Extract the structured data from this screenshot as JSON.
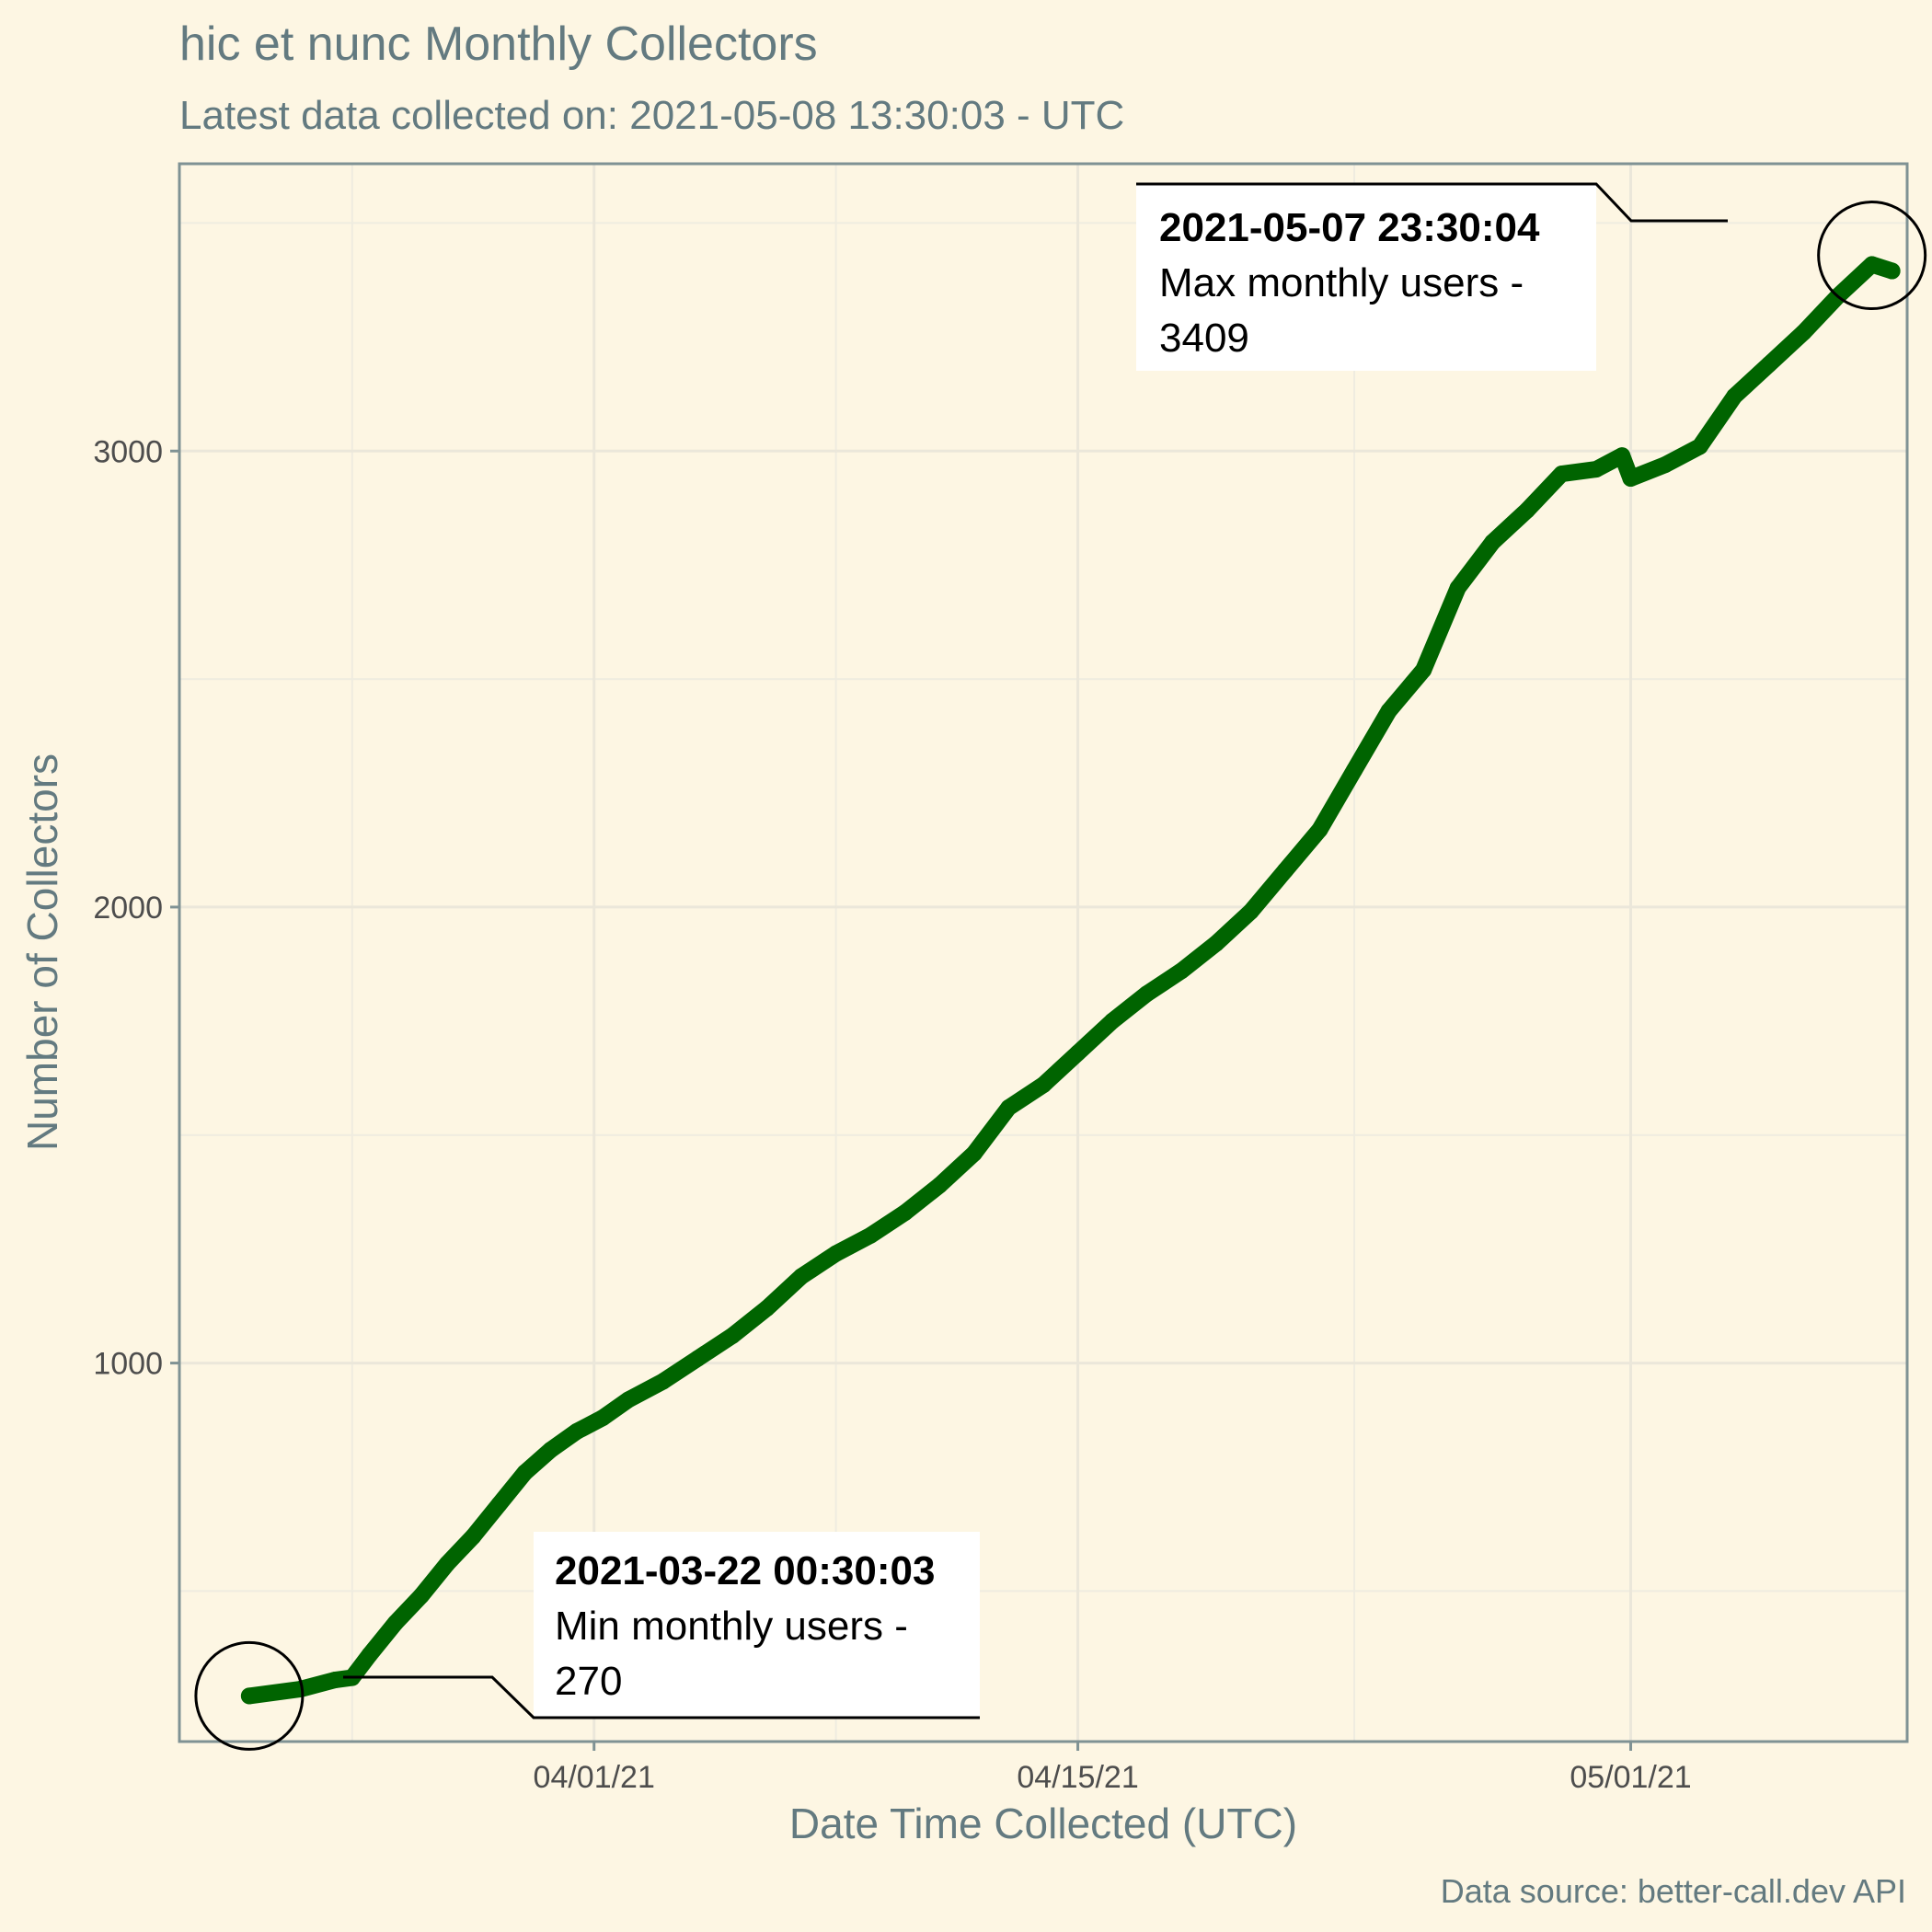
{
  "chart_data": {
    "type": "line",
    "title": "hic et nunc Monthly Collectors",
    "subtitle": "Latest data collected on: 2021-05-08 13:30:03  - UTC",
    "xlabel": "Date Time Collected (UTC)",
    "ylabel": "Number of Collectors",
    "caption": "Data source: better-call.dev API",
    "xlim": [
      "2021-03-20",
      "2021-05-09"
    ],
    "ylim": [
      170,
      3630
    ],
    "x_ticks": [
      {
        "date": "2021-04-01",
        "label": "04/01/21"
      },
      {
        "date": "2021-04-15",
        "label": "04/15/21"
      },
      {
        "date": "2021-05-01",
        "label": "05/01/21"
      }
    ],
    "y_ticks": [
      {
        "value": 1000,
        "label": "1000"
      },
      {
        "value": 2000,
        "label": "2000"
      },
      {
        "value": 3000,
        "label": "3000"
      }
    ],
    "grid": true,
    "legend": "none",
    "color": "#006400",
    "series": [
      {
        "x": [
          "2021-03-22 00:30",
          "2021-03-23 12:00",
          "2021-03-24 12:00",
          "2021-03-25 00:00",
          "2021-03-25 12:00",
          "2021-03-26 06:00",
          "2021-03-27 00:00",
          "2021-03-27 18:00",
          "2021-03-28 12:00",
          "2021-03-29 06:00",
          "2021-03-30 00:00",
          "2021-03-30 18:00",
          "2021-03-31 12:00",
          "2021-04-01 06:00",
          "2021-04-02 00:00",
          "2021-04-03 00:00",
          "2021-04-04 00:00",
          "2021-04-05 00:00",
          "2021-04-06 00:00",
          "2021-04-07 00:00",
          "2021-04-08 00:00",
          "2021-04-09 00:00",
          "2021-04-10 00:00",
          "2021-04-11 00:00",
          "2021-04-12 00:00",
          "2021-04-13 00:00",
          "2021-04-14 00:00",
          "2021-04-15 00:00",
          "2021-04-16 00:00",
          "2021-04-17 00:00",
          "2021-04-18 00:00",
          "2021-04-19 00:00",
          "2021-04-20 00:00",
          "2021-04-21 00:00",
          "2021-04-22 00:00",
          "2021-04-23 00:00",
          "2021-04-24 00:00",
          "2021-04-25 00:00",
          "2021-04-26 00:00",
          "2021-04-27 00:00",
          "2021-04-28 00:00",
          "2021-04-29 00:00",
          "2021-04-30 00:00",
          "2021-04-30 18:00",
          "2021-05-01 00:00",
          "2021-05-02 00:00",
          "2021-05-03 00:00",
          "2021-05-04 00:00",
          "2021-05-05 00:00",
          "2021-05-06 00:00",
          "2021-05-07 00:00",
          "2021-05-07 23:30",
          "2021-05-08 13:30"
        ],
        "y": [
          270,
          285,
          305,
          310,
          360,
          430,
          490,
          560,
          620,
          690,
          760,
          810,
          850,
          880,
          920,
          960,
          1010,
          1060,
          1120,
          1190,
          1240,
          1280,
          1330,
          1390,
          1460,
          1560,
          1610,
          1680,
          1750,
          1810,
          1860,
          1920,
          1990,
          2080,
          2170,
          2300,
          2430,
          2520,
          2700,
          2800,
          2870,
          2950,
          2960,
          2990,
          2940,
          2970,
          3010,
          3120,
          3190,
          3260,
          3340,
          3409,
          3395
        ]
      }
    ],
    "annotations": [
      {
        "timestamp": "2021-05-07 23:30:04",
        "text": "Max monthly users -",
        "value_text": "3409",
        "x": "2021-05-07 23:30",
        "y": 3409
      },
      {
        "timestamp": "2021-03-22 00:30:03",
        "text": "Min monthly users -",
        "value_text": "270",
        "x": "2021-03-22 00:30",
        "y": 270
      }
    ]
  }
}
